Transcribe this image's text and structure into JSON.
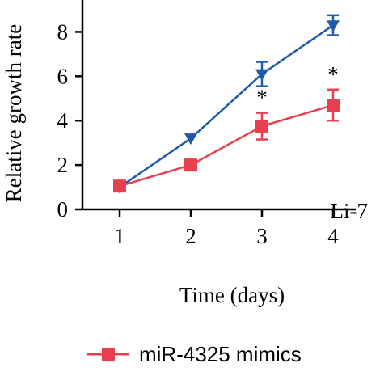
{
  "chart_data": {
    "type": "line",
    "title": "",
    "xlabel": "Time (days)",
    "ylabel": "Relative growth rate",
    "x": [
      1,
      2,
      3,
      4
    ],
    "xlim": [
      0.5,
      4.5
    ],
    "ylim": [
      0,
      9
    ],
    "yticks": [
      0,
      2,
      4,
      6,
      8
    ],
    "xticks": [
      1,
      2,
      3,
      4
    ],
    "panel_label": "Li-7",
    "series": [
      {
        "name": "",
        "color": "#1f5ba8",
        "marker": "triangle-down",
        "values": [
          1.0,
          3.2,
          6.1,
          8.3
        ],
        "errors": [
          0.05,
          0.08,
          0.55,
          0.45
        ]
      },
      {
        "name": "miR-4325 mimics",
        "color": "#e8404f",
        "marker": "square",
        "values": [
          1.05,
          2.0,
          3.75,
          4.7
        ],
        "errors": [
          0.05,
          0.12,
          0.6,
          0.7
        ]
      }
    ],
    "significance": [
      {
        "x": 3,
        "label": "*"
      },
      {
        "x": 4,
        "label": "*"
      }
    ],
    "legend": {
      "placement": "bottom",
      "visible_entries": [
        "miR-4325 mimics"
      ]
    }
  }
}
